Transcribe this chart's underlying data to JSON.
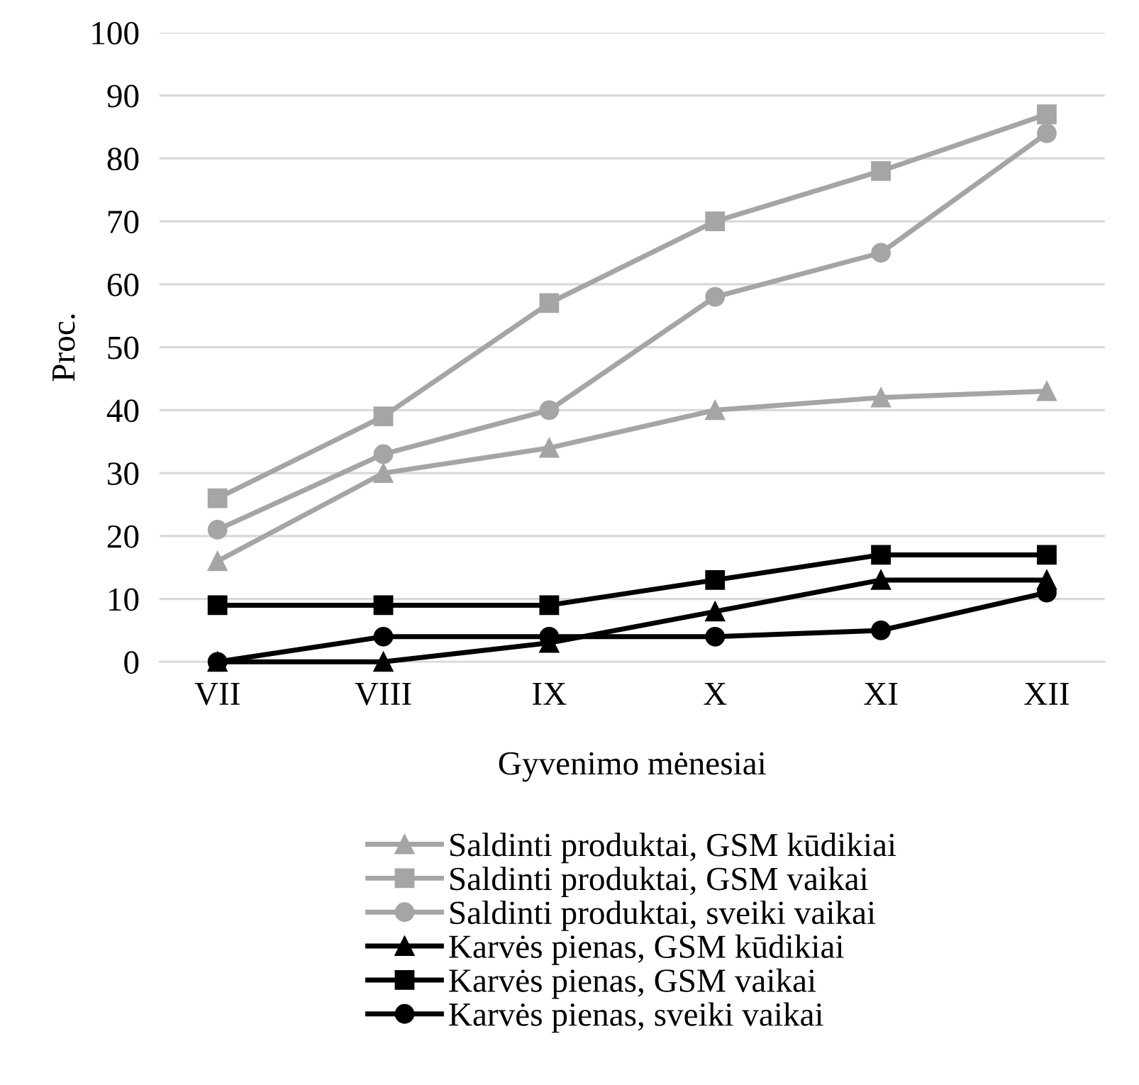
{
  "chart_data": {
    "type": "line",
    "xlabel": "Gyvenimo mėnesiai",
    "ylabel": "Proc.",
    "categories": [
      "VII",
      "VIII",
      "IX",
      "X",
      "XI",
      "XII"
    ],
    "series": [
      {
        "name": "Saldinti produktai, GSM kūdikiai",
        "color": "#a5a5a5",
        "marker": "triangle",
        "values": [
          16,
          30,
          34,
          40,
          42,
          43
        ]
      },
      {
        "name": "Saldinti produktai, GSM vaikai",
        "color": "#a5a5a5",
        "marker": "square",
        "values": [
          26,
          39,
          57,
          70,
          78,
          87
        ]
      },
      {
        "name": "Saldinti produktai, sveiki vaikai",
        "color": "#a5a5a5",
        "marker": "circle",
        "values": [
          21,
          33,
          40,
          58,
          65,
          84
        ]
      },
      {
        "name": "Karvės pienas, GSM kūdikiai",
        "color": "#000000",
        "marker": "triangle",
        "values": [
          0,
          0,
          3,
          8,
          13,
          13
        ]
      },
      {
        "name": "Karvės pienas, GSM vaikai",
        "color": "#000000",
        "marker": "square",
        "values": [
          9,
          9,
          9,
          13,
          17,
          17
        ]
      },
      {
        "name": "Karvės pienas, sveiki vaikai",
        "color": "#000000",
        "marker": "circle",
        "values": [
          0,
          4,
          4,
          4,
          5,
          11
        ]
      }
    ],
    "ylim": [
      0,
      100
    ],
    "yticks": [
      0,
      10,
      20,
      30,
      40,
      50,
      60,
      70,
      80,
      90,
      100
    ],
    "grid": "y",
    "legend": "bottom",
    "line_style": "solid"
  }
}
